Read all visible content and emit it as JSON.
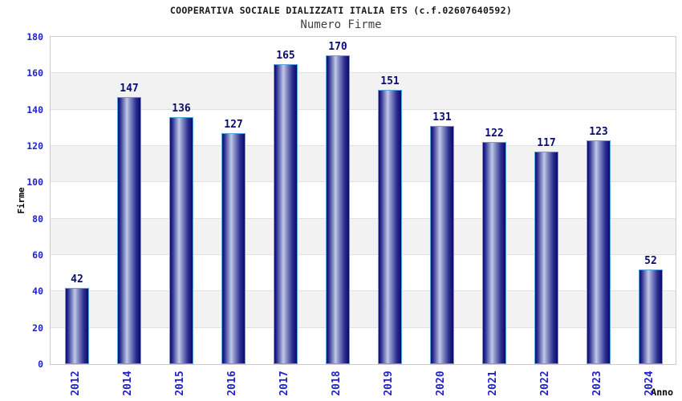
{
  "header": {
    "title": "COOPERATIVA SOCIALE DIALIZZATI ITALIA ETS (c.f.02607640592)",
    "subtitle": "Numero Firme"
  },
  "colors": {
    "tick_label_blue": "#2222cc",
    "value_label_navy": "#0c0c70",
    "bar_dark": "#0b0b66",
    "bar_mid": "#2b2f92",
    "bar_midlight": "#8e96c9",
    "bar_light": "#c3c9e6",
    "bar_border": "#58a6e4",
    "band_gray": "#f2f2f2",
    "band_white": "#ffffff",
    "grid_line": "#e0e0e0",
    "plot_border": "#cccccc",
    "title_color": "#1a1a1a",
    "subtitle_color": "#404040",
    "axis_title_color": "#000000"
  },
  "chart_data": {
    "type": "bar",
    "title": "COOPERATIVA SOCIALE DIALIZZATI ITALIA ETS (c.f.02607640592)",
    "subtitle": "Numero Firme",
    "categories": [
      "2012",
      "2014",
      "2015",
      "2016",
      "2017",
      "2018",
      "2019",
      "2020",
      "2021",
      "2022",
      "2023",
      "2024"
    ],
    "values": [
      42,
      147,
      136,
      127,
      165,
      170,
      151,
      131,
      122,
      117,
      123,
      52
    ],
    "xlabel": "Anno",
    "ylabel": "Firme",
    "ylim": [
      0,
      180
    ],
    "ytick_step": 20,
    "yticks": [
      0,
      20,
      40,
      60,
      80,
      100,
      120,
      140,
      160,
      180
    ],
    "grid": "horizontal-bands-alternating",
    "legend": "none",
    "value_labels_shown": true
  }
}
